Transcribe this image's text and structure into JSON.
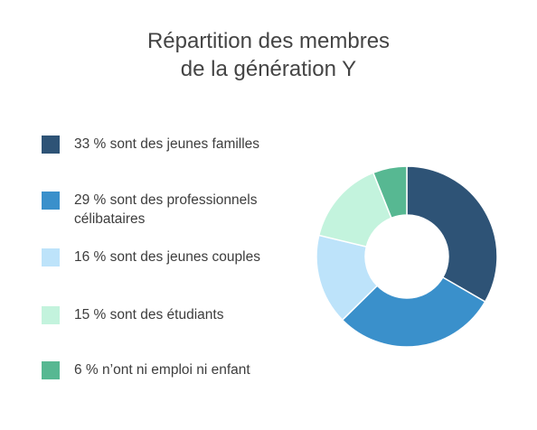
{
  "title_line1": "Répartition des membres",
  "title_line2": "de la génération Y",
  "chart_data": {
    "type": "pie",
    "variant": "donut",
    "title": "Répartition des membres de la génération Y",
    "legend_position": "left",
    "slices": [
      {
        "label": "33 % sont des jeunes familles",
        "value": 33,
        "color": "#2e5376"
      },
      {
        "label": "29 % sont des professionnels célibataires",
        "value": 29,
        "color": "#3a90cb"
      },
      {
        "label": "16 % sont des jeunes couples",
        "value": 16,
        "color": "#bde3fa"
      },
      {
        "label": "15 % sont des étudiants",
        "value": 15,
        "color": "#c3f3dd"
      },
      {
        "label": "6 % n’ont ni emploi ni enfant",
        "value": 6,
        "color": "#57b892"
      }
    ]
  }
}
